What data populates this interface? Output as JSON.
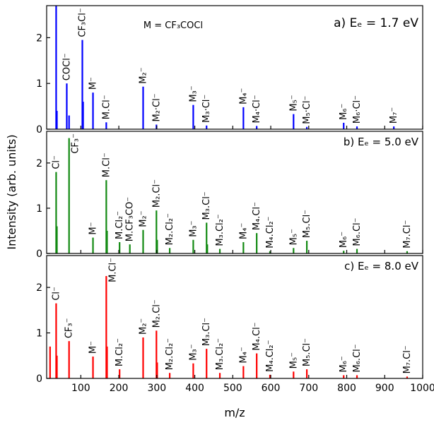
{
  "ylabel": "Intensity (arb. units)",
  "xlabel": "m/z",
  "chart_data": [
    {
      "type": "bar",
      "title": "a) Eₑ = 1.7 eV",
      "annotation": "M = CF₃COCl",
      "color": "#0000ff",
      "xlim": [
        10,
        1000
      ],
      "xticks": [
        100,
        200,
        300,
        400,
        500,
        600,
        700,
        800,
        900,
        1000
      ],
      "ylim": [
        0,
        2.7
      ],
      "yticks": [
        0,
        1,
        2
      ],
      "x": [
        35,
        37,
        63,
        69,
        104,
        106,
        132,
        167,
        264,
        299,
        396,
        431,
        528,
        563,
        660,
        695,
        792,
        827,
        924
      ],
      "values": [
        2.7,
        0.4,
        1.0,
        0.3,
        1.95,
        0.6,
        0.8,
        0.15,
        0.93,
        0.1,
        0.53,
        0.08,
        0.48,
        0.07,
        0.33,
        0.05,
        0.14,
        0.06,
        0.06
      ],
      "labels": [
        null,
        null,
        "COCl⁻",
        null,
        "CF₃Cl⁻",
        null,
        "M⁻",
        "M.Cl⁻",
        "M₂⁻",
        "M₂·Cl⁻",
        "M₃⁻",
        "M₃·Cl⁻",
        "M₄⁻",
        "M₄·Cl⁻",
        "M₅⁻",
        "M₅·Cl⁻",
        "M₆⁻",
        "M₆·Cl⁻",
        "M₇⁻"
      ]
    },
    {
      "type": "bar",
      "title": "b) Eₑ = 5.0 eV",
      "color": "#138a13",
      "xlim": [
        10,
        1000
      ],
      "xticks": [
        100,
        200,
        300,
        400,
        500,
        600,
        700,
        800,
        900,
        1000
      ],
      "ylim": [
        0,
        2.7
      ],
      "yticks": [
        0,
        1,
        2
      ],
      "x": [
        35,
        37,
        69,
        132,
        167,
        169,
        202,
        229,
        264,
        299,
        301,
        334,
        396,
        431,
        433,
        466,
        528,
        563,
        598,
        660,
        695,
        792,
        827,
        959
      ],
      "values": [
        1.8,
        0.6,
        2.55,
        0.35,
        1.62,
        0.5,
        0.25,
        0.2,
        0.52,
        0.95,
        0.3,
        0.12,
        0.3,
        0.68,
        0.2,
        0.1,
        0.25,
        0.45,
        0.05,
        0.12,
        0.28,
        0.06,
        0.1,
        0.05
      ],
      "labels": [
        "Cl⁻",
        null,
        "CF₃⁻",
        "M⁻",
        "M.Cl⁻",
        null,
        "M.Cl₂⁻",
        "M.CF₃CO⁻",
        "M₂⁻",
        "M₂.Cl⁻",
        null,
        "M₂.Cl₂⁻",
        "M₃⁻",
        "M₃.Cl⁻",
        null,
        "M₃.Cl₂⁻",
        "M₄⁻",
        "M₄.Cl⁻",
        "M₄.Cl₂⁻",
        "M₅⁻",
        "M₅.Cl⁻",
        "M₆⁻",
        "M₆.Cl⁻",
        "M₇.Cl⁻"
      ]
    },
    {
      "type": "bar",
      "title": "c) Eₑ = 8.0 eV",
      "color": "#ff0000",
      "xlim": [
        10,
        1000
      ],
      "xticks": [
        100,
        200,
        300,
        400,
        500,
        600,
        700,
        800,
        900,
        1000
      ],
      "ylim": [
        0,
        2.7
      ],
      "yticks": [
        0,
        1,
        2
      ],
      "x": [
        19,
        35,
        37,
        69,
        132,
        167,
        169,
        202,
        264,
        299,
        301,
        334,
        396,
        431,
        466,
        528,
        563,
        598,
        660,
        695,
        792,
        827,
        959
      ],
      "values": [
        0.7,
        1.65,
        0.5,
        0.82,
        0.48,
        2.25,
        0.7,
        0.2,
        0.9,
        1.05,
        0.35,
        0.12,
        0.33,
        0.65,
        0.12,
        0.27,
        0.55,
        0.08,
        0.15,
        0.2,
        0.07,
        0.07,
        0.04
      ],
      "labels": [
        null,
        "Cl⁻",
        null,
        "CF₃⁻",
        "M⁻",
        "M.Cl⁻",
        null,
        "M.Cl₂⁻",
        "M₂⁻",
        "M₂.Cl⁻",
        null,
        "M₂.Cl₂⁻",
        "M₃⁻",
        "M₃.Cl⁻",
        "M₃.Cl₂⁻",
        "M₄⁻",
        "M₄.Cl⁻",
        "M₄.Cl₂⁻",
        "M₅⁻",
        "M₅.Cl⁻",
        "M₆⁻",
        "M₆.Cl⁻",
        "M₇.Cl⁻"
      ]
    }
  ]
}
